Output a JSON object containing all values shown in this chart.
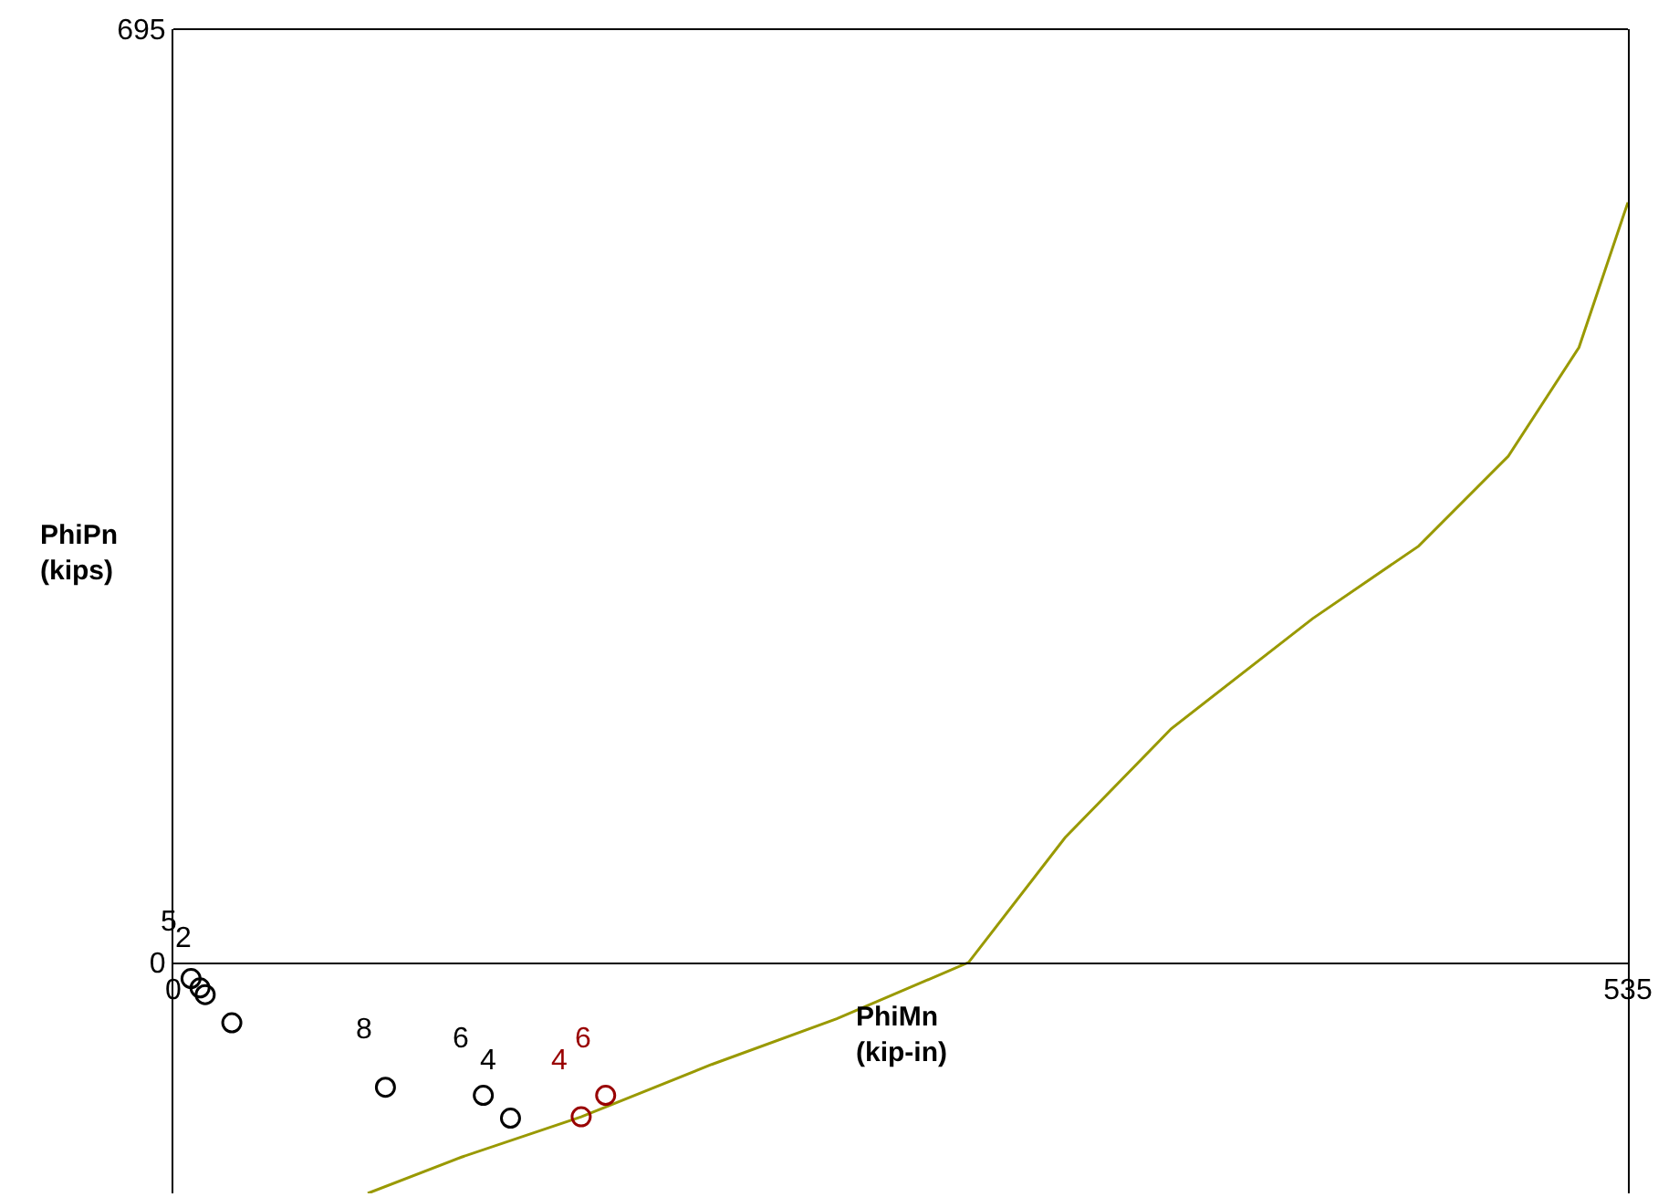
{
  "chart_data": {
    "type": "scatter",
    "xlabel": "PhiMn\n(kip-in)",
    "ylabel": "PhiPn\n(kips)",
    "xlim": [
      0,
      535
    ],
    "xticks": [
      0,
      535
    ],
    "ylim": [
      -172,
      695
    ],
    "yticks": [
      0,
      695
    ],
    "series": [
      {
        "type": "line",
        "color": "#999900",
        "marker": "none",
        "x": [
          71.5,
          106,
          150,
          198,
          244,
          292.5,
          328,
          367,
          419,
          458,
          491,
          517,
          535
        ],
        "values": [
          -172,
          -145,
          -115,
          -76,
          -42,
          0,
          93,
          174,
          256,
          310,
          377,
          458,
          566
        ]
      },
      {
        "color": "#000000",
        "marker": "circle",
        "x": [
          6.5,
          9.8,
          11.7,
          21.5,
          78,
          114,
          124
        ],
        "values": [
          -12,
          -19,
          -24,
          -45,
          -93,
          -99,
          -116
        ]
      },
      {
        "color": "#990000",
        "marker": "circle",
        "x": [
          159,
          150
        ],
        "values": [
          -99,
          -115
        ]
      }
    ],
    "annotations": [
      {
        "text": "5",
        "x": 6.5,
        "y": -12
      },
      {
        "text": "2",
        "x": 11.7,
        "y": -24
      },
      {
        "text": "8",
        "x": 78,
        "y": -93
      },
      {
        "text": "6",
        "x": 114,
        "y": -99
      },
      {
        "text": "4",
        "x": 124,
        "y": -116
      },
      {
        "text": "4",
        "x": 150,
        "y": -115
      },
      {
        "text": "6",
        "x": 159,
        "y": -99
      }
    ]
  }
}
